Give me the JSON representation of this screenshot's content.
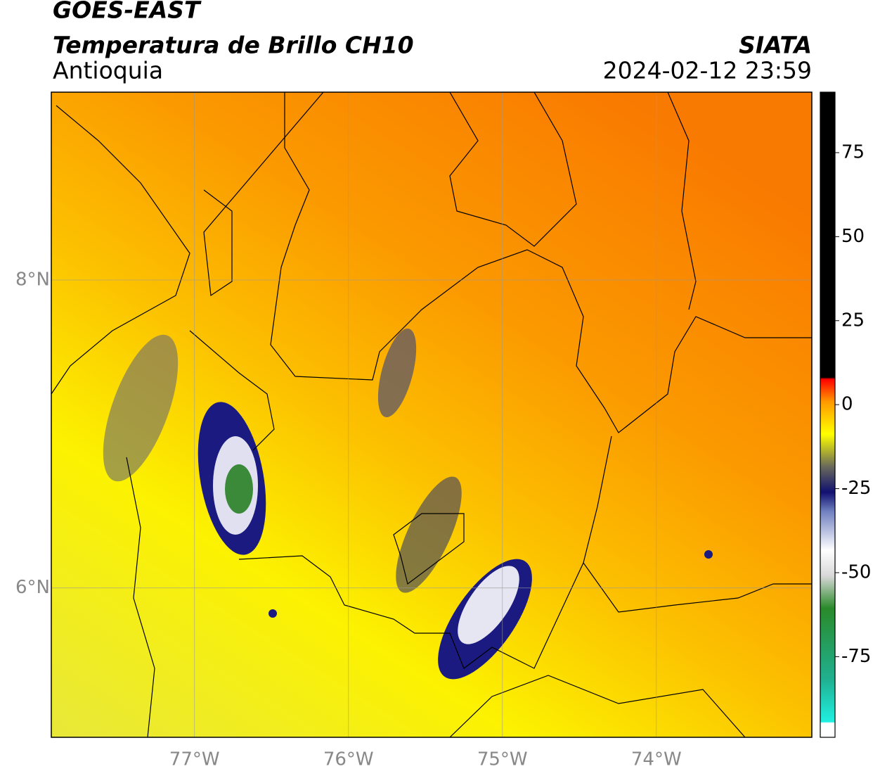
{
  "header": {
    "title": "GOES-EAST",
    "subtitle": "Temperatura de Brillo CH10",
    "region": "Antioquia",
    "source": "SIATA",
    "timestamp": "2024-02-12 23:59"
  },
  "map": {
    "xlim": [
      -77.93,
      -72.99
    ],
    "ylim": [
      5.03,
      9.22
    ],
    "xticks": [
      {
        "value": -77,
        "label": "77°W"
      },
      {
        "value": -76,
        "label": "76°W"
      },
      {
        "value": -75,
        "label": "75°W"
      },
      {
        "value": -74,
        "label": "74°W"
      }
    ],
    "yticks": [
      {
        "value": 8,
        "label": "8°N"
      },
      {
        "value": 6,
        "label": "6°N"
      }
    ],
    "grid": true
  },
  "colorbar": {
    "lim": [
      -99,
      93
    ],
    "ticks": [
      75,
      50,
      25,
      0,
      -25,
      -50,
      -75
    ]
  }
}
